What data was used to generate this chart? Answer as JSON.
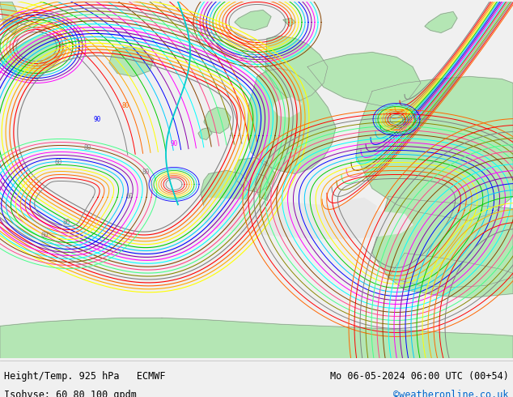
{
  "title_left": "Height/Temp. 925 hPa   ECMWF",
  "title_right": "Mo 06-05-2024 06:00 UTC (00+54)",
  "subtitle_left": "Isohyse: 60 80 100 gpdm",
  "subtitle_right": "©weatheronline.co.uk",
  "subtitle_right_color": "#0066cc",
  "bg_ocean_color": "#e8e8e8",
  "bg_land_color": "#b4e6b4",
  "bg_land_dark": "#a8c8a8",
  "text_color": "#000000",
  "fig_width": 6.34,
  "fig_height": 4.9,
  "dpi": 100,
  "bottom_bar_color": "#f0f0f0",
  "contour_colors": [
    "#808080",
    "#ff0000",
    "#ff6600",
    "#ffaa00",
    "#ffff00",
    "#00cc00",
    "#00ccff",
    "#0000ff",
    "#8800aa",
    "#ff00ff",
    "#00ffff",
    "#884400",
    "#ff4488",
    "#44ff88",
    "#888800"
  ]
}
